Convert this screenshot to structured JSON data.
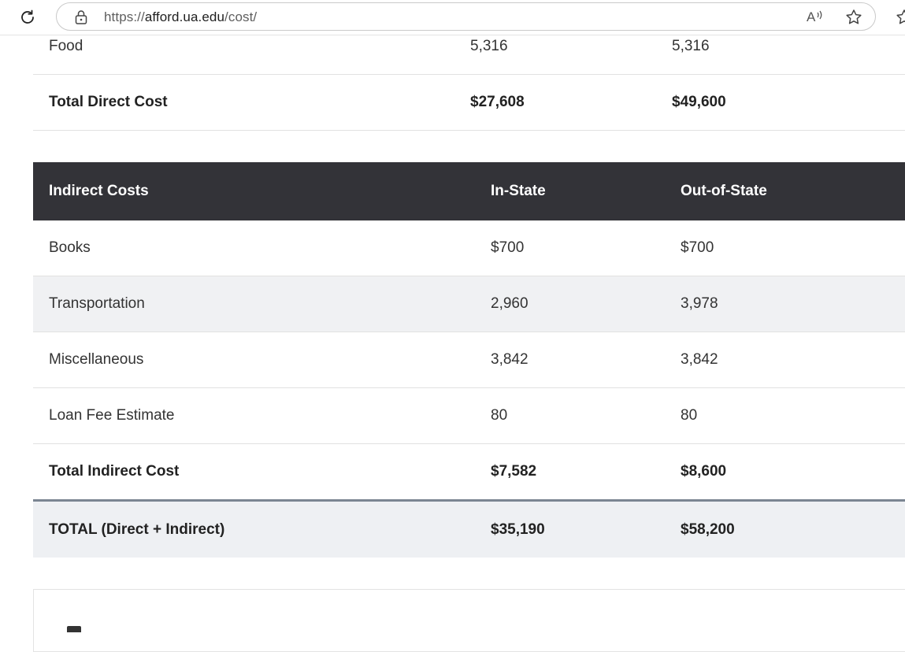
{
  "browser": {
    "url_prefix": "https://",
    "url_host": "afford.ua.edu",
    "url_path": "/cost/",
    "read_aloud_label": "A⁾"
  },
  "direct_costs": {
    "rows": [
      {
        "label": "Food",
        "in_state": "5,316",
        "out_state": "5,316"
      }
    ],
    "total": {
      "label": "Total Direct Cost",
      "in_state": "$27,608",
      "out_state": "$49,600"
    }
  },
  "indirect_costs": {
    "header": {
      "label": "Indirect Costs",
      "in_state": "In-State",
      "out_state": "Out-of-State"
    },
    "rows": [
      {
        "label": "Books",
        "in_state": "$700",
        "out_state": "$700"
      },
      {
        "label": "Transportation",
        "in_state": "2,960",
        "out_state": "3,978"
      },
      {
        "label": "Miscellaneous",
        "in_state": "3,842",
        "out_state": "3,842"
      },
      {
        "label": "Loan Fee Estimate",
        "in_state": "80",
        "out_state": "80"
      }
    ],
    "total": {
      "label": "Total Indirect Cost",
      "in_state": "$7,582",
      "out_state": "$8,600"
    }
  },
  "grand_total": {
    "label": "TOTAL (Direct + Indirect)",
    "in_state": "$35,190",
    "out_state": "$58,200"
  },
  "colors": {
    "header_bg": "#333338",
    "row_shade": "#f0f1f3",
    "total_border": "#7b8592"
  }
}
